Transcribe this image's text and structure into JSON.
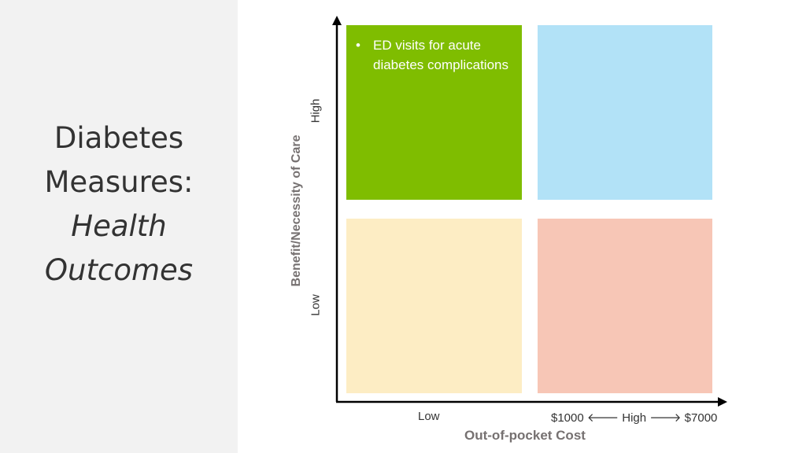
{
  "title": {
    "line1": "Diabetes",
    "line2": "Measures:",
    "line3": "Health",
    "line4": "Outcomes"
  },
  "chart": {
    "y_axis_label": "Benefit/Necessity of Care",
    "y_high": "High",
    "y_low": "Low",
    "x_axis_label": "Out-of-pocket Cost",
    "x_low": "Low",
    "x_high_range": "$1000 🡐 High 🡒 $7000",
    "quadrants": {
      "high_benefit_low_cost": {
        "color": "#7fbd00",
        "items": [
          "ED visits for acute diabetes complications"
        ]
      },
      "high_benefit_high_cost": {
        "color": "#b2e2f7",
        "items": []
      },
      "low_benefit_low_cost": {
        "color": "#fdedc4",
        "items": []
      },
      "low_benefit_high_cost": {
        "color": "#f7c6b6",
        "items": []
      }
    },
    "bullet": "•",
    "axis_color": "#000000"
  }
}
